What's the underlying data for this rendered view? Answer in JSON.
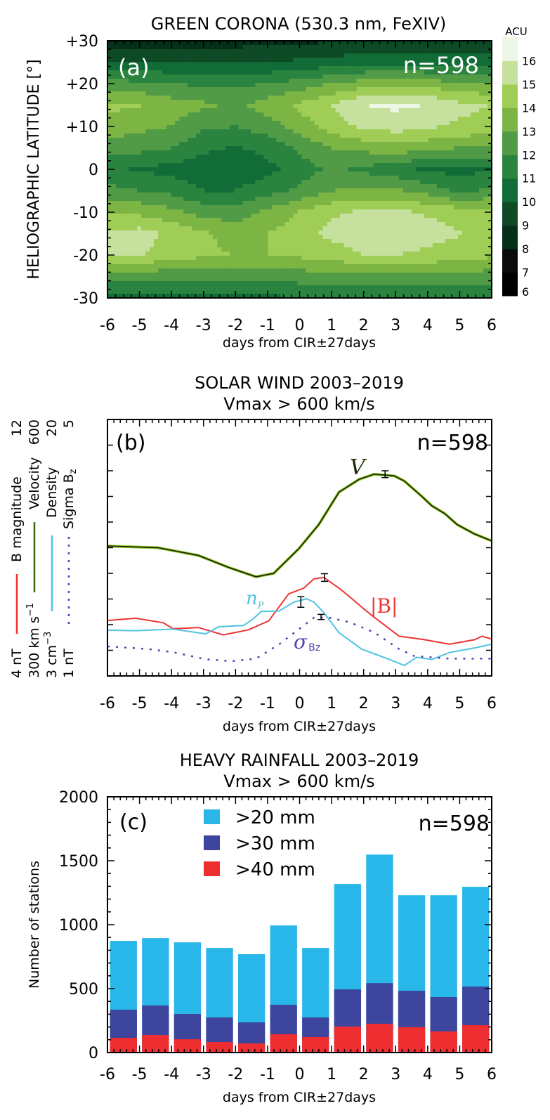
{
  "chart_data": [
    {
      "type": "heatmap",
      "title": "GREEN CORONA (530.3 nm, FeXIV)",
      "panel_label": "(a)",
      "count_label": "n=598",
      "xlabel": "days from CIR±27days",
      "ylabel": "HELIOGRAPHIC LATITUDE [°]",
      "xlim": [
        -6,
        6
      ],
      "ylim": [
        -30,
        30
      ],
      "xticks": [
        "-6",
        "-5",
        "-4",
        "-3",
        "-2",
        "-1",
        "0",
        "1",
        "2",
        "3",
        "4",
        "5",
        "6"
      ],
      "yticks": [
        "+30",
        "+20",
        "+10",
        "0",
        "-10",
        "-20",
        "-30"
      ],
      "x": [
        -6,
        -5,
        -4,
        -3,
        -2,
        -1,
        0,
        1,
        2,
        3,
        4,
        5,
        6
      ],
      "y": [
        30,
        25,
        20,
        15,
        10,
        5,
        0,
        -5,
        -10,
        -15,
        -20,
        -25,
        -30
      ],
      "z": [
        [
          8.4,
          8.4,
          8.5,
          8.6,
          8.6,
          8.7,
          8.8,
          8.9,
          9.0,
          9.0,
          9.0,
          9.0,
          9.0
        ],
        [
          10.2,
          10.1,
          10.0,
          9.9,
          9.9,
          10.0,
          10.2,
          10.4,
          10.6,
          10.7,
          10.6,
          10.5,
          10.5
        ],
        [
          12.4,
          12.2,
          12.0,
          11.8,
          11.8,
          12.0,
          12.4,
          13.0,
          13.5,
          13.8,
          13.5,
          13.2,
          13.0
        ],
        [
          14.2,
          14.1,
          13.5,
          13.2,
          12.8,
          13.5,
          14.2,
          15.0,
          16.0,
          16.2,
          16.0,
          15.3,
          15.0
        ],
        [
          13.6,
          13.3,
          13.0,
          12.2,
          12.0,
          12.5,
          13.5,
          14.5,
          15.2,
          15.5,
          15.2,
          14.8,
          14.6
        ],
        [
          12.5,
          12.3,
          12.0,
          11.2,
          10.9,
          11.3,
          12.2,
          13.0,
          13.3,
          13.6,
          13.3,
          13.0,
          13.0
        ],
        [
          11.2,
          10.9,
          10.6,
          10.4,
          10.3,
          10.7,
          11.5,
          12.2,
          11.8,
          11.3,
          10.8,
          10.6,
          11.0
        ],
        [
          12.3,
          12.0,
          11.7,
          11.0,
          11.0,
          11.6,
          12.2,
          13.0,
          13.2,
          13.2,
          12.6,
          11.8,
          12.2
        ],
        [
          14.0,
          13.8,
          13.3,
          12.6,
          12.5,
          13.2,
          14.1,
          14.8,
          15.2,
          15.2,
          14.9,
          14.5,
          14.5
        ],
        [
          15.2,
          15.4,
          14.8,
          14.2,
          13.5,
          14.0,
          14.6,
          15.3,
          15.6,
          15.6,
          15.4,
          15.1,
          14.5
        ],
        [
          15.0,
          15.1,
          14.5,
          14.2,
          14.0,
          14.0,
          14.2,
          14.5,
          15.0,
          15.0,
          14.8,
          14.4,
          14.2
        ],
        [
          12.5,
          12.4,
          12.3,
          12.3,
          12.4,
          12.5,
          12.5,
          12.6,
          12.7,
          12.7,
          12.6,
          12.6,
          12.5
        ],
        [
          10.8,
          10.8,
          10.7,
          10.7,
          10.8,
          10.8,
          10.9,
          10.9,
          11.0,
          11.0,
          10.9,
          10.9,
          10.9
        ]
      ],
      "colorbar": {
        "label": "ACU",
        "ticks": [
          "6",
          "7",
          "8",
          "9",
          "10",
          "11",
          "12",
          "13",
          "14",
          "15",
          "16"
        ],
        "range": [
          6,
          17
        ],
        "colors": [
          "#000000",
          "#0b0b0b",
          "#06301a",
          "#0d4a25",
          "#116c37",
          "#2a843f",
          "#519b47",
          "#7cb544",
          "#9fcd55",
          "#c6e09e",
          "#eef6e6"
        ]
      }
    },
    {
      "type": "line",
      "title": "SOLAR WIND 2003–2019",
      "subtitle": "Vmax > 600 km/s",
      "panel_label": "(b)",
      "count_label": "n=598",
      "xlabel": "days from CIR±27days",
      "xlim": [
        -6,
        6
      ],
      "xticks": [
        "-6",
        "-5",
        "-4",
        "-3",
        "-2",
        "-1",
        "0",
        "1",
        "2",
        "3",
        "4",
        "5",
        "6"
      ],
      "axes_labels": [
        {
          "low": "4 nT",
          "name": "B magnitude",
          "high": "12",
          "color": "#ee3333",
          "style": "solid"
        },
        {
          "low": "300 km s",
          "low_sup": "−1",
          "name": "Velocity",
          "high": "600",
          "color": "#3a6a10",
          "style": "solid"
        },
        {
          "low": "3 cm",
          "low_sup": "−3",
          "name": "Density",
          "high": "20",
          "color": "#4fc3e0",
          "style": "solid"
        },
        {
          "low": "1 nT",
          "name": "Sigma B",
          "name_sub": "z",
          "high": "5",
          "color": "#5a3fb0",
          "style": "dotted"
        }
      ],
      "series": [
        {
          "key": "V",
          "label": "V",
          "ylim": [
            300,
            600
          ],
          "color": "#1a2a05",
          "x": [
            -6,
            -4.42,
            -3.16,
            -2.22,
            -1.36,
            -0.81,
            -0.02,
            0.6,
            1.23,
            1.86,
            2.33,
            2.96,
            3.27,
            3.82,
            4.13,
            4.53,
            4.92,
            5.47,
            6
          ],
          "y": [
            452,
            450,
            441,
            427,
            416,
            420,
            449,
            477,
            515,
            530,
            536,
            534,
            528,
            510,
            499,
            490,
            477,
            466,
            458
          ],
          "error_bar": {
            "x": 2.67,
            "y": 536,
            "err": 4
          }
        },
        {
          "key": "B",
          "label": "|B|",
          "ylim": [
            4,
            12
          ],
          "color": "#ee3333",
          "x": [
            -6,
            -5.12,
            -4.26,
            -3.95,
            -3.16,
            -2.38,
            -1.59,
            -0.96,
            -0.34,
            0.13,
            0.45,
            0.76,
            1.23,
            1.55,
            2.02,
            2.33,
            3.11,
            3.9,
            4.68,
            5.47,
            5.7,
            6
          ],
          "y": [
            5.73,
            5.8,
            5.66,
            5.47,
            5.51,
            5.28,
            5.44,
            5.72,
            6.56,
            6.74,
            7.03,
            7.07,
            6.74,
            6.48,
            6.08,
            5.83,
            5.24,
            5.13,
            4.99,
            5.13,
            5.24,
            5.15
          ],
          "error_bar": {
            "x": 0.78,
            "y": 7.07,
            "err": 0.12
          }
        },
        {
          "key": "n",
          "label": "n",
          "label_sub": "P",
          "ylim": [
            3,
            20
          ],
          "color": "#4fc3e0",
          "x": [
            -6,
            -5.12,
            -3.95,
            -2.93,
            -2.53,
            -1.75,
            -1.44,
            -1.2,
            -0.65,
            -0.18,
            0.21,
            0.45,
            0.76,
            1.23,
            1.94,
            2.72,
            3.27,
            3.66,
            4.13,
            4.68,
            5.47,
            6
          ],
          "y": [
            6.03,
            6.0,
            6.1,
            5.79,
            6.26,
            6.34,
            6.8,
            7.27,
            7.3,
            7.89,
            8.12,
            7.89,
            7.19,
            5.87,
            4.78,
            4.16,
            3.7,
            4.24,
            4.09,
            4.55,
            4.86,
            5.1
          ],
          "error_bar": {
            "x": 0.04,
            "y": 7.9,
            "err": 0.35
          }
        },
        {
          "key": "sigma",
          "label": "σ",
          "label_sub": "Bz",
          "ylim": [
            1,
            5
          ],
          "color": "#5a3fb0",
          "x": [
            -6,
            -4.73,
            -3.95,
            -2.93,
            -2.14,
            -1.36,
            -0.65,
            -0.02,
            0.45,
            0.92,
            1.55,
            2.33,
            3.11,
            3.58,
            4.68,
            6
          ],
          "y": [
            1.46,
            1.42,
            1.37,
            1.26,
            1.23,
            1.27,
            1.49,
            1.73,
            1.91,
            1.91,
            1.84,
            1.68,
            1.42,
            1.31,
            1.27,
            1.27
          ],
          "error_bar": {
            "x": 0.67,
            "y": 1.92,
            "err": 0.04
          }
        }
      ]
    },
    {
      "type": "bar",
      "title": "HEAVY RAINFALL 2003–2019",
      "subtitle": "Vmax > 600 km/s",
      "panel_label": "(c)",
      "count_label": "n=598",
      "xlabel": "days from CIR±27days",
      "ylabel": "Number of stations",
      "xlim": [
        -6,
        6
      ],
      "ylim": [
        0,
        2000
      ],
      "xticks": [
        "-6",
        "-5",
        "-4",
        "-3",
        "-2",
        "-1",
        "0",
        "1",
        "2",
        "3",
        "4",
        "5",
        "6"
      ],
      "yticks": [
        "0",
        "500",
        "1000",
        "1500",
        "2000"
      ],
      "categories": [
        -5.5,
        -4.5,
        -3.5,
        -2.5,
        -1.5,
        -0.5,
        0.5,
        1.5,
        2.5,
        3.5,
        4.5,
        5.5
      ],
      "legend_position": "top-left",
      "series": [
        {
          "name": ">20 mm",
          "color": "#29b6e8",
          "values": [
            873,
            895,
            862,
            818,
            769,
            994,
            818,
            1318,
            1548,
            1230,
            1230,
            1296
          ]
        },
        {
          "name": ">30 mm",
          "color": "#3d469c",
          "values": [
            335,
            368,
            302,
            274,
            236,
            373,
            274,
            494,
            543,
            483,
            434,
            516
          ]
        },
        {
          "name": ">40 mm",
          "color": "#ee2e31",
          "values": [
            115,
            137,
            104,
            82,
            71,
            143,
            121,
            203,
            225,
            198,
            165,
            214
          ]
        }
      ]
    }
  ]
}
